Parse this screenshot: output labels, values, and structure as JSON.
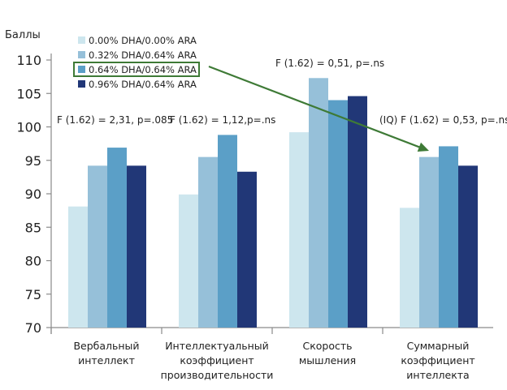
{
  "chart_data": {
    "type": "bar",
    "title": "",
    "xlabel": "",
    "ylabel": "Баллы",
    "ylim": [
      70,
      110
    ],
    "yticks": [
      70,
      75,
      80,
      85,
      90,
      95,
      100,
      105,
      110
    ],
    "grid": false,
    "legend_position": "top-left",
    "categories": [
      [
        "Вербальный",
        "интеллект"
      ],
      [
        "Интеллектуальный",
        "коэффициент",
        "производительности"
      ],
      [
        "Скорость",
        "мышления"
      ],
      [
        "Суммарный",
        "коэффициент",
        "интеллекта"
      ]
    ],
    "series": [
      {
        "name": "0.00% DHA/0.00% ARA",
        "color": "#cde6ee",
        "values": [
          88.1,
          89.9,
          99.2,
          87.9
        ]
      },
      {
        "name": "0.32% DHA/0.64% ARA",
        "color": "#96c0d9",
        "values": [
          94.2,
          95.5,
          107.3,
          95.5
        ]
      },
      {
        "name": "0.64% DHA/0.64% ARA",
        "color": "#5b9fc7",
        "values": [
          96.9,
          98.8,
          104.0,
          97.1
        ],
        "highlighted": true
      },
      {
        "name": "0.96% DHA/0.64% ARA",
        "color": "#213777",
        "values": [
          94.2,
          93.3,
          104.6,
          94.2
        ]
      }
    ],
    "annotations": [
      {
        "text": "F (1.62) = 2,31, p=.085",
        "category": 0
      },
      {
        "text": "F (1.62) = 1,12,p=.ns",
        "category": 1
      },
      {
        "text": "F (1.62) = 0,51, p=.ns",
        "category": 2
      },
      {
        "text": "(IQ) F (1.62) = 0,53, p=.ns",
        "category": 3
      }
    ],
    "arrow": {
      "from": "legend:0.64% DHA/0.64% ARA",
      "to": "category 3, series 3",
      "color": "#3e7a36"
    }
  }
}
